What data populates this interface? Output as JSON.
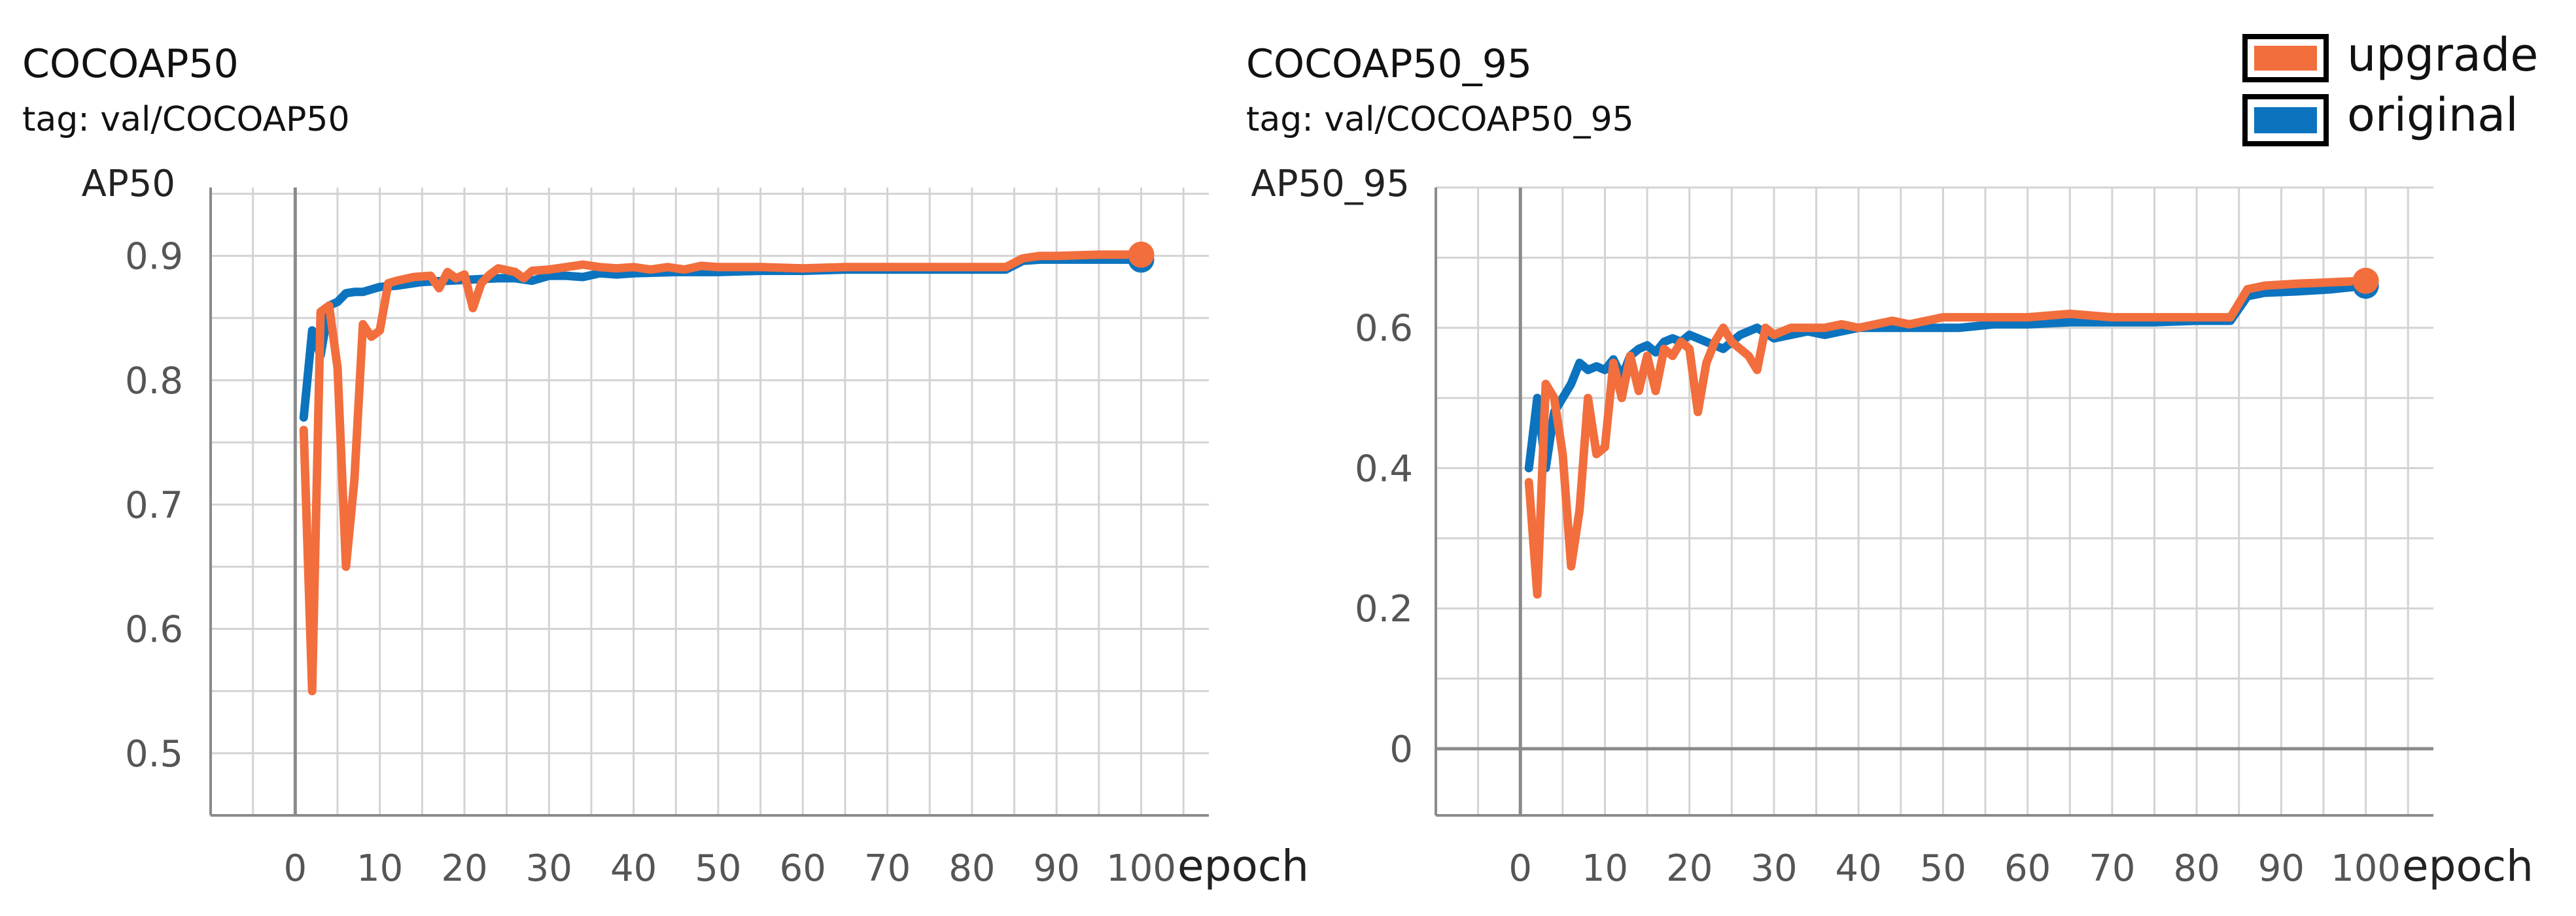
{
  "legend": {
    "entries": [
      {
        "label": "upgrade",
        "color": "#f26e3d"
      },
      {
        "label": "original",
        "color": "#0c73be"
      }
    ]
  },
  "chart_data": [
    {
      "type": "line",
      "title": "COCOAP50",
      "subtitle": "tag: val/COCOAP50",
      "ylabel": "AP50",
      "xlabel": "epoch",
      "xlim": [
        -10,
        108
      ],
      "ylim": [
        0.45,
        0.955
      ],
      "xticks": [
        0,
        10,
        20,
        30,
        40,
        50,
        60,
        70,
        80,
        90,
        100
      ],
      "yticks": [
        0.5,
        0.6,
        0.7,
        0.8,
        0.9
      ],
      "ytick_labels": [
        "0.5",
        "0.6",
        "0.7",
        "0.8",
        "0.9"
      ],
      "grid": true,
      "series": [
        {
          "name": "original",
          "color": "#0c73be",
          "points": [
            [
              1,
              0.77
            ],
            [
              2,
              0.84
            ],
            [
              3,
              0.82
            ],
            [
              4,
              0.86
            ],
            [
              5,
              0.863
            ],
            [
              6,
              0.87
            ],
            [
              7,
              0.871
            ],
            [
              8,
              0.871
            ],
            [
              10,
              0.875
            ],
            [
              12,
              0.876
            ],
            [
              15,
              0.879
            ],
            [
              18,
              0.88
            ],
            [
              21,
              0.881
            ],
            [
              24,
              0.882
            ],
            [
              26,
              0.882
            ],
            [
              28,
              0.88
            ],
            [
              30,
              0.884
            ],
            [
              32,
              0.884
            ],
            [
              34,
              0.883
            ],
            [
              36,
              0.886
            ],
            [
              38,
              0.885
            ],
            [
              40,
              0.886
            ],
            [
              45,
              0.887
            ],
            [
              50,
              0.887
            ],
            [
              55,
              0.888
            ],
            [
              60,
              0.888
            ],
            [
              65,
              0.889
            ],
            [
              70,
              0.889
            ],
            [
              75,
              0.889
            ],
            [
              80,
              0.889
            ],
            [
              84,
              0.889
            ],
            [
              86,
              0.896
            ],
            [
              88,
              0.897
            ],
            [
              90,
              0.897
            ],
            [
              95,
              0.897
            ],
            [
              100,
              0.897
            ]
          ]
        },
        {
          "name": "upgrade",
          "color": "#f26e3d",
          "points": [
            [
              1,
              0.76
            ],
            [
              2,
              0.55
            ],
            [
              3,
              0.855
            ],
            [
              4,
              0.86
            ],
            [
              5,
              0.81
            ],
            [
              6,
              0.65
            ],
            [
              7,
              0.72
            ],
            [
              8,
              0.845
            ],
            [
              9,
              0.835
            ],
            [
              10,
              0.84
            ],
            [
              11,
              0.878
            ],
            [
              12,
              0.88
            ],
            [
              14,
              0.883
            ],
            [
              16,
              0.884
            ],
            [
              17,
              0.874
            ],
            [
              18,
              0.887
            ],
            [
              19,
              0.882
            ],
            [
              20,
              0.885
            ],
            [
              21,
              0.858
            ],
            [
              22,
              0.878
            ],
            [
              23,
              0.885
            ],
            [
              24,
              0.89
            ],
            [
              26,
              0.887
            ],
            [
              27,
              0.882
            ],
            [
              28,
              0.888
            ],
            [
              30,
              0.889
            ],
            [
              32,
              0.891
            ],
            [
              34,
              0.893
            ],
            [
              36,
              0.891
            ],
            [
              38,
              0.89
            ],
            [
              40,
              0.891
            ],
            [
              42,
              0.889
            ],
            [
              44,
              0.891
            ],
            [
              46,
              0.889
            ],
            [
              48,
              0.892
            ],
            [
              50,
              0.891
            ],
            [
              55,
              0.891
            ],
            [
              60,
              0.89
            ],
            [
              65,
              0.891
            ],
            [
              70,
              0.891
            ],
            [
              75,
              0.891
            ],
            [
              80,
              0.891
            ],
            [
              84,
              0.891
            ],
            [
              86,
              0.898
            ],
            [
              88,
              0.9
            ],
            [
              90,
              0.9
            ],
            [
              95,
              0.901
            ],
            [
              100,
              0.901
            ]
          ]
        }
      ]
    },
    {
      "type": "line",
      "title": "COCOAP50_95",
      "subtitle": "tag: val/COCOAP50_95",
      "ylabel": "AP50_95",
      "xlabel": "epoch",
      "xlim": [
        -10,
        108
      ],
      "ylim": [
        -0.095,
        0.8
      ],
      "xticks": [
        0,
        10,
        20,
        30,
        40,
        50,
        60,
        70,
        80,
        90,
        100
      ],
      "yticks": [
        0,
        0.2,
        0.4,
        0.6
      ],
      "ytick_labels": [
        "0",
        "0.2",
        "0.4",
        "0.6"
      ],
      "grid": true,
      "series": [
        {
          "name": "original",
          "color": "#0c73be",
          "points": [
            [
              1,
              0.4
            ],
            [
              2,
              0.5
            ],
            [
              3,
              0.4
            ],
            [
              4,
              0.48
            ],
            [
              5,
              0.5
            ],
            [
              6,
              0.52
            ],
            [
              7,
              0.55
            ],
            [
              8,
              0.54
            ],
            [
              9,
              0.545
            ],
            [
              10,
              0.54
            ],
            [
              11,
              0.555
            ],
            [
              12,
              0.53
            ],
            [
              13,
              0.56
            ],
            [
              14,
              0.57
            ],
            [
              15,
              0.575
            ],
            [
              16,
              0.565
            ],
            [
              17,
              0.58
            ],
            [
              18,
              0.585
            ],
            [
              19,
              0.58
            ],
            [
              20,
              0.59
            ],
            [
              22,
              0.58
            ],
            [
              24,
              0.57
            ],
            [
              26,
              0.59
            ],
            [
              28,
              0.6
            ],
            [
              30,
              0.585
            ],
            [
              32,
              0.59
            ],
            [
              34,
              0.595
            ],
            [
              36,
              0.59
            ],
            [
              38,
              0.595
            ],
            [
              40,
              0.6
            ],
            [
              44,
              0.6
            ],
            [
              48,
              0.6
            ],
            [
              52,
              0.6
            ],
            [
              56,
              0.605
            ],
            [
              60,
              0.605
            ],
            [
              65,
              0.608
            ],
            [
              70,
              0.608
            ],
            [
              75,
              0.608
            ],
            [
              80,
              0.61
            ],
            [
              84,
              0.61
            ],
            [
              86,
              0.645
            ],
            [
              88,
              0.65
            ],
            [
              92,
              0.652
            ],
            [
              96,
              0.655
            ],
            [
              100,
              0.66
            ]
          ]
        },
        {
          "name": "upgrade",
          "color": "#f26e3d",
          "points": [
            [
              1,
              0.38
            ],
            [
              2,
              0.22
            ],
            [
              3,
              0.52
            ],
            [
              4,
              0.5
            ],
            [
              5,
              0.42
            ],
            [
              6,
              0.26
            ],
            [
              7,
              0.34
            ],
            [
              8,
              0.5
            ],
            [
              9,
              0.42
            ],
            [
              10,
              0.43
            ],
            [
              11,
              0.55
            ],
            [
              12,
              0.5
            ],
            [
              13,
              0.56
            ],
            [
              14,
              0.51
            ],
            [
              15,
              0.56
            ],
            [
              16,
              0.51
            ],
            [
              17,
              0.57
            ],
            [
              18,
              0.56
            ],
            [
              19,
              0.58
            ],
            [
              20,
              0.57
            ],
            [
              21,
              0.48
            ],
            [
              22,
              0.55
            ],
            [
              23,
              0.58
            ],
            [
              24,
              0.6
            ],
            [
              25,
              0.58
            ],
            [
              26,
              0.57
            ],
            [
              27,
              0.56
            ],
            [
              28,
              0.54
            ],
            [
              29,
              0.6
            ],
            [
              30,
              0.59
            ],
            [
              32,
              0.6
            ],
            [
              34,
              0.6
            ],
            [
              36,
              0.6
            ],
            [
              38,
              0.605
            ],
            [
              40,
              0.6
            ],
            [
              42,
              0.605
            ],
            [
              44,
              0.61
            ],
            [
              46,
              0.605
            ],
            [
              48,
              0.61
            ],
            [
              50,
              0.615
            ],
            [
              55,
              0.615
            ],
            [
              60,
              0.615
            ],
            [
              65,
              0.62
            ],
            [
              70,
              0.615
            ],
            [
              75,
              0.615
            ],
            [
              80,
              0.615
            ],
            [
              84,
              0.615
            ],
            [
              86,
              0.655
            ],
            [
              88,
              0.66
            ],
            [
              92,
              0.663
            ],
            [
              96,
              0.665
            ],
            [
              100,
              0.667
            ]
          ]
        }
      ]
    }
  ]
}
